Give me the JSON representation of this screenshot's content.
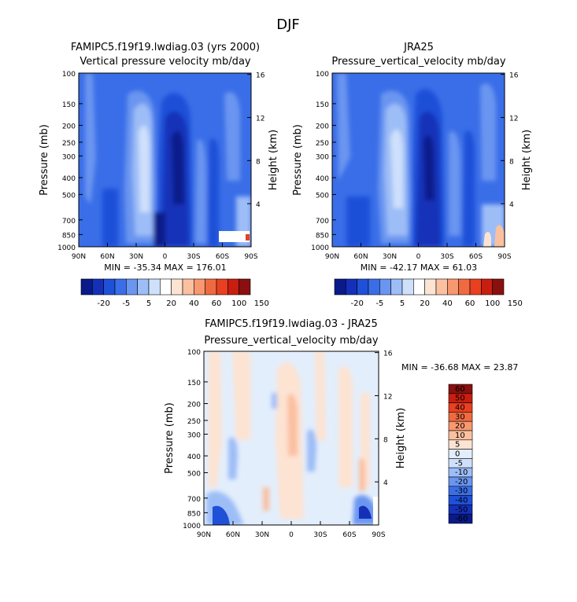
{
  "page_title": "DJF",
  "colors": {
    "full_field": [
      "#0a1a8a",
      "#1530b8",
      "#1f50d8",
      "#3a6ee8",
      "#6a95f0",
      "#9dbdf7",
      "#cfe0fb",
      "#ffffff",
      "#fde3d2",
      "#fbc0a0",
      "#f89870",
      "#f06a40",
      "#e84020",
      "#c81e10",
      "#8a1010"
    ],
    "diff_field": [
      "#0a1a8a",
      "#1530b8",
      "#1f50d8",
      "#3a6ee8",
      "#6a95f0",
      "#9dbdf7",
      "#cfe0fb",
      "#e3eefc",
      "#fde3d2",
      "#fbc0a0",
      "#f89870",
      "#f06a40",
      "#e84020",
      "#c81e10",
      "#8a1010"
    ]
  },
  "panels": [
    {
      "title": "FAMIPC5.f19f19.lwdiag.03 (yrs 2000)",
      "subtitle": "Vertical pressure velocity mb/day",
      "ylabel": "Pressure (mb)",
      "y2label": "Height (km)",
      "stats": "MIN = -35.34   MAX = 176.01"
    },
    {
      "title": "JRA25",
      "subtitle": "Pressure_vertical_velocity mb/day",
      "ylabel": "Pressure (mb)",
      "y2label": "Height (km)",
      "stats": "MIN = -42.17   MAX =  61.03"
    },
    {
      "title": "FAMIPC5.f19f19.lwdiag.03 - JRA25",
      "subtitle": "Pressure_vertical_velocity mb/day",
      "ylabel": "Pressure (mb)",
      "y2label": "Height (km)",
      "stats": "MIN = -36.68   MAX =  23.87"
    }
  ],
  "chart_data": [
    {
      "type": "heatmap",
      "title": "FAMIPC5.f19f19.lwdiag.03 (yrs 2000)",
      "subtitle": "Vertical pressure velocity mb/day",
      "xlabel": "",
      "ylabel": "Pressure (mb)",
      "y2label": "Height (km)",
      "x_ticks": [
        "90N",
        "60N",
        "30N",
        "0",
        "30S",
        "60S",
        "90S"
      ],
      "y_ticks": [
        "100",
        "150",
        "200",
        "250",
        "300",
        "400",
        "500",
        "700",
        "850",
        "1000"
      ],
      "y2_ticks": [
        "16",
        "12",
        "8",
        "4"
      ],
      "colorbar_levels": [
        "-20",
        "-5",
        "5",
        "20",
        "40",
        "60",
        "100",
        "150"
      ],
      "min": -35.34,
      "max": 176.01
    },
    {
      "type": "heatmap",
      "title": "JRA25",
      "subtitle": "Pressure_vertical_velocity mb/day",
      "xlabel": "",
      "ylabel": "Pressure (mb)",
      "y2label": "Height (km)",
      "x_ticks": [
        "90N",
        "60N",
        "30N",
        "0",
        "30S",
        "60S",
        "90S"
      ],
      "y_ticks": [
        "100",
        "150",
        "200",
        "250",
        "300",
        "400",
        "500",
        "700",
        "850",
        "1000"
      ],
      "y2_ticks": [
        "16",
        "12",
        "8",
        "4"
      ],
      "colorbar_levels": [
        "-20",
        "-5",
        "5",
        "20",
        "40",
        "60",
        "100",
        "150"
      ],
      "min": -42.17,
      "max": 61.03
    },
    {
      "type": "heatmap",
      "title": "FAMIPC5.f19f19.lwdiag.03 - JRA25",
      "subtitle": "Pressure_vertical_velocity mb/day",
      "xlabel": "",
      "ylabel": "Pressure (mb)",
      "y2label": "Height (km)",
      "x_ticks": [
        "90N",
        "60N",
        "30N",
        "0",
        "30S",
        "60S",
        "90S"
      ],
      "y_ticks": [
        "100",
        "150",
        "200",
        "250",
        "300",
        "400",
        "500",
        "700",
        "850",
        "1000"
      ],
      "y2_ticks": [
        "16",
        "12",
        "8",
        "4"
      ],
      "colorbar_levels": [
        "60",
        "50",
        "40",
        "30",
        "20",
        "10",
        "5",
        "0",
        "-5",
        "-10",
        "-20",
        "-30",
        "-40",
        "-50",
        "-60"
      ],
      "min": -36.68,
      "max": 23.87
    }
  ]
}
